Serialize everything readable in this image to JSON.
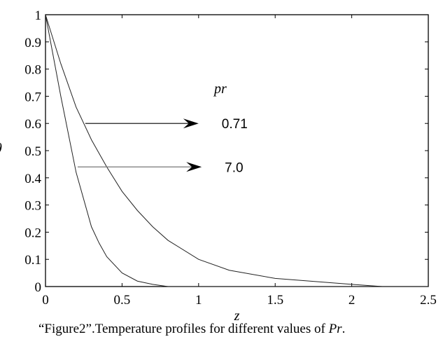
{
  "chart_data": {
    "type": "line",
    "title": "",
    "xlabel": "z",
    "ylabel": "θ",
    "xlim": [
      0,
      2.5
    ],
    "ylim": [
      0,
      1
    ],
    "xticks": [
      "0",
      "0.5",
      "1",
      "1.5",
      "2",
      "2.5"
    ],
    "yticks": [
      "0",
      "0.1",
      "0.2",
      "0.3",
      "0.4",
      "0.5",
      "0.6",
      "0.7",
      "0.8",
      "0.9",
      "1"
    ],
    "grid": false,
    "series": [
      {
        "name": "0.71",
        "x": [
          0,
          0.1,
          0.2,
          0.3,
          0.4,
          0.5,
          0.6,
          0.7,
          0.8,
          1.0,
          1.2,
          1.5,
          2.0,
          2.2,
          2.5
        ],
        "y": [
          1,
          0.82,
          0.66,
          0.54,
          0.44,
          0.35,
          0.28,
          0.22,
          0.17,
          0.1,
          0.06,
          0.03,
          0.008,
          0,
          0
        ]
      },
      {
        "name": "7.0",
        "x": [
          0,
          0.1,
          0.2,
          0.3,
          0.35,
          0.4,
          0.5,
          0.6,
          0.7,
          0.8,
          2.5
        ],
        "y": [
          1,
          0.7,
          0.42,
          0.22,
          0.16,
          0.11,
          0.05,
          0.02,
          0.008,
          0,
          0
        ]
      }
    ],
    "annotations": [
      {
        "text": "pr"
      },
      {
        "text": "0.71",
        "arrow_from": [
          0.26,
          0.6
        ],
        "arrow_to": [
          1.0,
          0.6
        ]
      },
      {
        "text": "7.0",
        "arrow_from": [
          0.21,
          0.44
        ],
        "arrow_to": [
          1.02,
          0.44
        ]
      }
    ]
  },
  "caption": {
    "prefix": "“Figure2”.Temperature profiles for different values of ",
    "var": "Pr",
    "suffix": "."
  }
}
